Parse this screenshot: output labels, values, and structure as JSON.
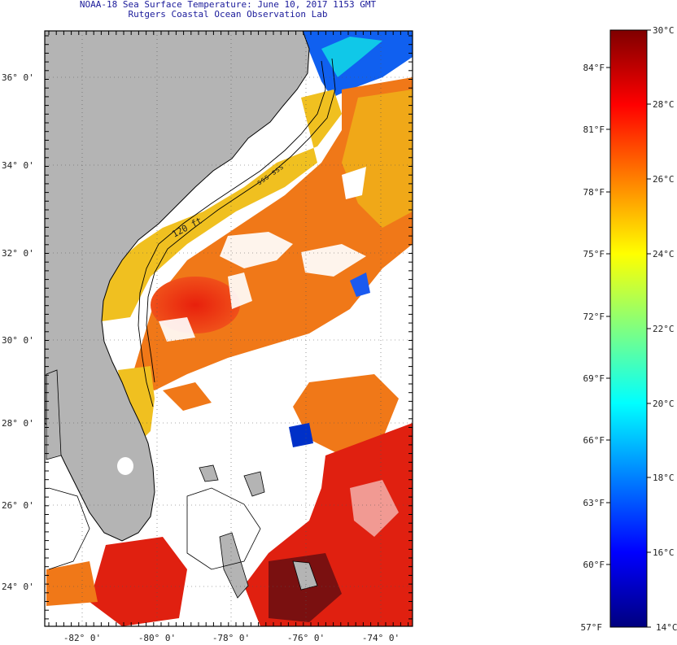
{
  "header": {
    "title": "NOAA-18 Sea Surface Temperature:  June 10, 2017 1153 GMT",
    "subtitle": "Rutgers Coastal Ocean Observation Lab"
  },
  "map": {
    "lat_labels": [
      "36° 0'",
      "34° 0'",
      "32° 0'",
      "30° 0'",
      "28° 0'",
      "26° 0'",
      "24° 0'"
    ],
    "lon_labels": [
      "-82° 0'",
      "-80° 0'",
      "-78° 0'",
      "-76° 0'",
      "-74° 0'"
    ],
    "isobath_labels": [
      "120 ft",
      "sss sss"
    ],
    "colors": {
      "land": "#b4b4b4",
      "cloud": "#ffffff",
      "frame": "#000000"
    }
  },
  "colorbar": {
    "fahrenheit_labels": [
      "84°F",
      "81°F",
      "78°F",
      "75°F",
      "72°F",
      "69°F",
      "66°F",
      "63°F",
      "60°F",
      "57°F"
    ],
    "celsius_labels": [
      "30°C",
      "28°C",
      "26°C",
      "24°C",
      "22°C",
      "20°C",
      "18°C",
      "16°C",
      "14°C"
    ],
    "range_c": [
      14,
      30
    ],
    "colormap": [
      "#00007f",
      "#0000ff",
      "#0080ff",
      "#00ffff",
      "#80ff80",
      "#ffff00",
      "#ff8000",
      "#ff0000",
      "#7f0000"
    ]
  }
}
